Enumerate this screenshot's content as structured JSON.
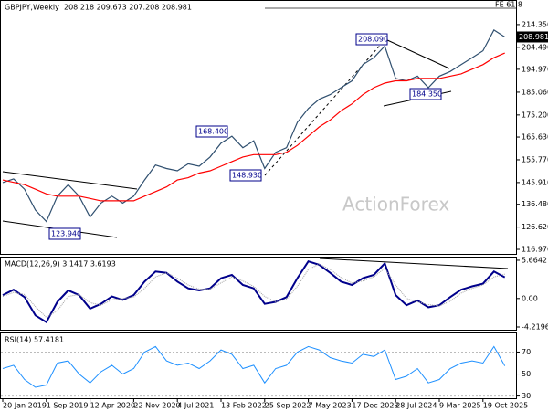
{
  "chart_data": [
    {
      "type": "line",
      "title": "GBPJPY,Weekly",
      "subtitle": "208.218 209.673 207.208 208.981",
      "watermark": "ActionForex",
      "series": [
        {
          "color": "#2f4f6f",
          "values": [
            145.9,
            147.5,
            143,
            134,
            129,
            140,
            145,
            140,
            131,
            137,
            140,
            137,
            140,
            147,
            153.5,
            152,
            151,
            154,
            153,
            157,
            163,
            166,
            161,
            164,
            152,
            159,
            161,
            172,
            178,
            182,
            184,
            187,
            190,
            197,
            200,
            205,
            191,
            190,
            192,
            187,
            192,
            194,
            197,
            200,
            203,
            212,
            208.981
          ]
        },
        {
          "color": "#ff0000",
          "values": [
            147,
            146,
            145,
            143,
            141,
            140,
            140,
            140,
            139,
            138,
            138,
            138,
            138,
            140,
            142,
            144,
            147,
            148,
            150,
            151,
            153,
            155,
            157,
            158,
            158,
            158,
            159,
            162,
            166,
            170,
            173,
            177,
            180,
            184,
            187,
            189,
            190,
            190,
            191,
            191,
            191,
            192,
            193,
            195,
            197,
            200,
            202
          ]
        }
      ],
      "ylim": [
        115,
        225
      ],
      "yticks": [
        {
          "value": 214.35,
          "label": "214.350"
        },
        {
          "value": 204.49,
          "label": "204.490"
        },
        {
          "value": 194.97,
          "label": "194.970"
        },
        {
          "value": 185.06,
          "label": "185.060"
        },
        {
          "value": 175.2,
          "label": "175.200"
        },
        {
          "value": 165.63,
          "label": "165.630"
        },
        {
          "value": 155.77,
          "label": "155.770"
        },
        {
          "value": 145.91,
          "label": "145.910"
        },
        {
          "value": 136.48,
          "label": "136.480"
        },
        {
          "value": 126.62,
          "label": "126.620"
        },
        {
          "value": 116.97,
          "label": "116.970"
        }
      ],
      "last_price": 208.981,
      "annotations": [
        "208.090",
        "184.350",
        "168.400",
        "148.930",
        "123.940",
        "FE 61.8"
      ]
    },
    {
      "type": "line",
      "title": "MACD(12,26,9) 3.1417 3.6193",
      "series": [
        {
          "color": "#00008b",
          "values": [
            0.5,
            1.3,
            0.2,
            -2.5,
            -3.5,
            -0.5,
            1.2,
            0.5,
            -1.5,
            -0.8,
            0.3,
            -0.2,
            0.5,
            2.5,
            4,
            3.8,
            2.5,
            1.5,
            1.2,
            1.5,
            3,
            3.5,
            2,
            1.5,
            -0.8,
            -0.5,
            0.2,
            3,
            5.5,
            5,
            3.8,
            2.5,
            2,
            3,
            3.5,
            5.2,
            0.5,
            -1,
            -0.3,
            -1.3,
            -1,
            0.2,
            1.3,
            1.8,
            2.2,
            4,
            3.1417
          ]
        },
        {
          "color": "#a0a0a0",
          "values": [
            0.3,
            0.9,
            0.6,
            -1.2,
            -2.8,
            -1.8,
            0.3,
            0.6,
            -0.6,
            -1,
            -0.2,
            0,
            0.2,
            1.5,
            3.2,
            3.8,
            3,
            2,
            1.4,
            1.4,
            2.3,
            3.2,
            2.6,
            1.8,
            0.3,
            -0.5,
            -0.1,
            1.8,
            4.3,
            5.1,
            4.3,
            3.1,
            2.3,
            2.6,
            3.2,
            4.5,
            2,
            0,
            -0.5,
            -0.9,
            -1.1,
            -0.4,
            0.8,
            1.5,
            2,
            3.2,
            3.6193
          ]
        }
      ],
      "ylim": [
        -4.76,
        6.2
      ],
      "yticks": [
        5.6642,
        {
          "value": 0,
          "label": "0.00"
        },
        -4.2196
      ]
    },
    {
      "type": "line",
      "title": "RSI(14) 57.4181",
      "categories": [
        "20 Jan 2019",
        null,
        null,
        null,
        "1 Sep 2019",
        null,
        null,
        null,
        "12 Apr 2020",
        null,
        null,
        null,
        "22 Nov 2020",
        null,
        null,
        null,
        "4 Jul 2021",
        null,
        null,
        null,
        "13 Feb 2022",
        null,
        null,
        null,
        "25 Sep 2022",
        null,
        null,
        null,
        "7 May 2023",
        null,
        null,
        null,
        "17 Dec 2023",
        null,
        null,
        null,
        "28 Jul 2024",
        null,
        null,
        null,
        "9 Mar 2025",
        null,
        null,
        null,
        "19 Oct 2025",
        null,
        null
      ],
      "series": [
        {
          "color": "#1e90ff",
          "values": [
            55,
            58,
            45,
            38,
            40,
            60,
            62,
            50,
            42,
            52,
            58,
            50,
            55,
            70,
            75,
            62,
            58,
            60,
            55,
            62,
            72,
            68,
            55,
            58,
            42,
            55,
            58,
            70,
            75,
            72,
            65,
            62,
            60,
            68,
            66,
            72,
            45,
            48,
            55,
            42,
            45,
            55,
            60,
            62,
            60,
            75,
            57.4181
          ]
        }
      ],
      "ylim": [
        28,
        87
      ],
      "yticks": [
        70,
        50,
        30
      ],
      "grid": true
    }
  ]
}
